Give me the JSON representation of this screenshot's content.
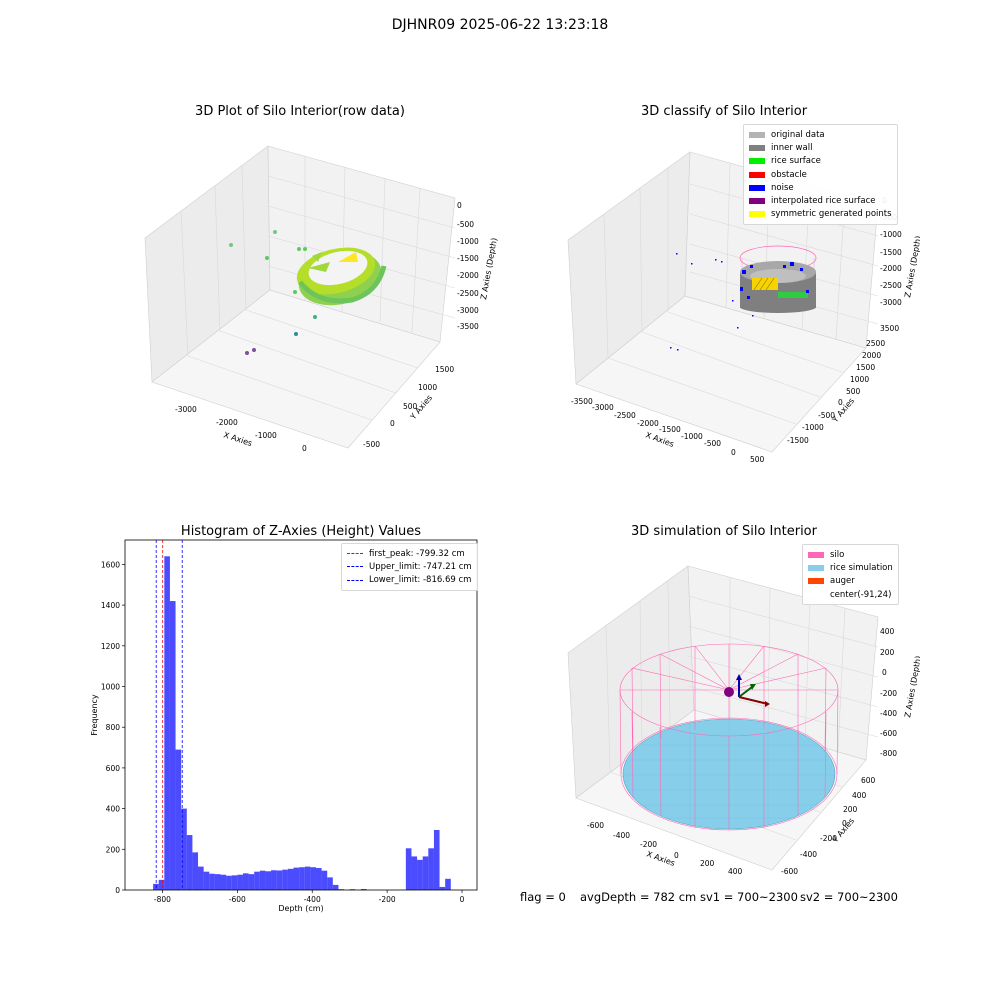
{
  "figure": {
    "suptitle": "DJHNR09 2025-06-22 13:23:18"
  },
  "status": {
    "flag": "flag = 0",
    "avg_depth": "avgDepth = 782 cm",
    "sv1": "sv1 = 700~2300",
    "sv2": "sv2 = 700~2300"
  },
  "chart_data": [
    {
      "type": "scatter",
      "subtype": "3d",
      "title": "3D Plot of Silo Interior(row data)",
      "xlabel": "X Axies",
      "ylabel": "Y Axies",
      "zlabel": "Z Axies (Depth)",
      "x_ticks": [
        "-3000",
        "-2000",
        "-1000",
        "0"
      ],
      "y_ticks": [
        "-500",
        "0",
        "500",
        "1000",
        "1500"
      ],
      "z_ticks": [
        "0",
        "-500",
        "-1000",
        "-1500",
        "-2000",
        "-2500",
        "-3000",
        "-3500"
      ],
      "colormap": "viridis",
      "description_points": [
        {
          "x": -3500,
          "y": -400,
          "z": -3400,
          "color": "#7e4fa0"
        },
        {
          "x": -2900,
          "y": -300,
          "z": -3300,
          "color": "#7e4fa0"
        },
        {
          "x": -1700,
          "y": 300,
          "z": -3000,
          "color": "#2c8f96"
        },
        {
          "x": -1400,
          "y": 700,
          "z": -2700,
          "color": "#3fb07a"
        },
        {
          "x": -2000,
          "y": 900,
          "z": -1100,
          "color": "#6ecb80"
        },
        {
          "x": -2500,
          "y": 1100,
          "z": -700,
          "color": "#6ecb80"
        },
        {
          "x": -1600,
          "y": 1300,
          "z": -600,
          "color": "#6ecb80"
        },
        {
          "x": -1200,
          "y": 1300,
          "z": -1000,
          "color": "#6ecb80"
        }
      ],
      "ring_surface": {
        "color_dark": "#72c54f",
        "color_light": "#e4e826",
        "approx_depth": -800
      }
    },
    {
      "type": "scatter",
      "subtype": "3d",
      "title": "3D classify of Silo Interior",
      "xlabel": "X Axies",
      "ylabel": "Y Axies",
      "zlabel": "Z Axies (Depth)",
      "x_ticks": [
        "-3500",
        "-3000",
        "-2500",
        "-2000",
        "-1500",
        "-1000",
        "-500",
        "0",
        "500"
      ],
      "y_ticks": [
        "-1500",
        "-1000",
        "-500",
        "0",
        "500",
        "1000",
        "1500",
        "2000",
        "2500"
      ],
      "z_ticks": [
        "0",
        "-500",
        "-1000",
        "-1500",
        "-2000",
        "-2500",
        "-3000",
        "-3500"
      ],
      "legend": [
        {
          "label": "original data",
          "color": "#b3b3b3"
        },
        {
          "label": "inner wall",
          "color": "#808080"
        },
        {
          "label": "rice surface",
          "color": "#00ee00"
        },
        {
          "label": "obstacle",
          "color": "#ff0000"
        },
        {
          "label": "noise",
          "color": "#0000ff"
        },
        {
          "label": "interpolated rice surface",
          "color": "#800080"
        },
        {
          "label": "symmetric generated points",
          "color": "#ffff00"
        }
      ]
    },
    {
      "type": "bar",
      "subtype": "histogram",
      "title": "Histogram of Z-Axies (Height) Values",
      "xlabel": "Depth (cm)",
      "ylabel": "Frequency",
      "xlim": [
        -900,
        40
      ],
      "ylim": [
        0,
        1720
      ],
      "x_ticks": [
        -800,
        -600,
        -400,
        -200,
        0
      ],
      "y_ticks": [
        0,
        200,
        400,
        600,
        800,
        1000,
        1200,
        1400,
        1600
      ],
      "bar_color": "#0000ff",
      "bar_alpha": 0.7,
      "bin_width": 15,
      "bins": [
        {
          "x": -825,
          "value": 30
        },
        {
          "x": -810,
          "value": 50
        },
        {
          "x": -795,
          "value": 1640
        },
        {
          "x": -780,
          "value": 1420
        },
        {
          "x": -765,
          "value": 690
        },
        {
          "x": -750,
          "value": 400
        },
        {
          "x": -735,
          "value": 270
        },
        {
          "x": -720,
          "value": 185
        },
        {
          "x": -705,
          "value": 115
        },
        {
          "x": -690,
          "value": 90
        },
        {
          "x": -675,
          "value": 80
        },
        {
          "x": -660,
          "value": 78
        },
        {
          "x": -645,
          "value": 75
        },
        {
          "x": -630,
          "value": 70
        },
        {
          "x": -615,
          "value": 72
        },
        {
          "x": -600,
          "value": 75
        },
        {
          "x": -585,
          "value": 82
        },
        {
          "x": -570,
          "value": 78
        },
        {
          "x": -555,
          "value": 90
        },
        {
          "x": -540,
          "value": 95
        },
        {
          "x": -525,
          "value": 92
        },
        {
          "x": -510,
          "value": 97
        },
        {
          "x": -495,
          "value": 96
        },
        {
          "x": -480,
          "value": 100
        },
        {
          "x": -465,
          "value": 104
        },
        {
          "x": -450,
          "value": 110
        },
        {
          "x": -435,
          "value": 112
        },
        {
          "x": -420,
          "value": 115
        },
        {
          "x": -405,
          "value": 112
        },
        {
          "x": -390,
          "value": 108
        },
        {
          "x": -375,
          "value": 95
        },
        {
          "x": -360,
          "value": 62
        },
        {
          "x": -345,
          "value": 25
        },
        {
          "x": -330,
          "value": 4
        },
        {
          "x": -315,
          "value": 0
        },
        {
          "x": -300,
          "value": 4
        },
        {
          "x": -285,
          "value": 0
        },
        {
          "x": -270,
          "value": 5
        },
        {
          "x": -255,
          "value": 0
        },
        {
          "x": -240,
          "value": 0
        },
        {
          "x": -150,
          "value": 205
        },
        {
          "x": -135,
          "value": 165
        },
        {
          "x": -120,
          "value": 148
        },
        {
          "x": -105,
          "value": 165
        },
        {
          "x": -90,
          "value": 205
        },
        {
          "x": -75,
          "value": 295
        },
        {
          "x": -60,
          "value": 15
        },
        {
          "x": -45,
          "value": 55
        }
      ],
      "vlines": [
        {
          "x": -799.32,
          "color": "#ff0000",
          "label": "first_peak: -799.32 cm"
        },
        {
          "x": -747.21,
          "color": "#0000ff",
          "label": "Upper_limit: -747.21 cm"
        },
        {
          "x": -816.69,
          "color": "#0000ff",
          "label": "Lower_limit: -816.69 cm"
        }
      ]
    },
    {
      "type": "scatter",
      "subtype": "3d-simulation",
      "title": "3D simulation of Silo Interior",
      "xlabel": "X Axies",
      "ylabel": "Y Axies",
      "zlabel": "Z Axies (Depth)",
      "x_ticks": [
        "-600",
        "-400",
        "-200",
        "0",
        "200",
        "400"
      ],
      "y_ticks": [
        "-600",
        "-400",
        "-200",
        "0",
        "200",
        "400",
        "600"
      ],
      "z_ticks": [
        "400",
        "200",
        "0",
        "-200",
        "-400",
        "-600",
        "-800"
      ],
      "legend": [
        {
          "label": "silo",
          "color": "#ff69b4"
        },
        {
          "label": "rice simulation",
          "color": "#87ceeb"
        },
        {
          "label": "auger",
          "color": "#ff4500"
        },
        {
          "label": "center(-91,24)",
          "color": "#ffffff"
        }
      ]
    }
  ]
}
